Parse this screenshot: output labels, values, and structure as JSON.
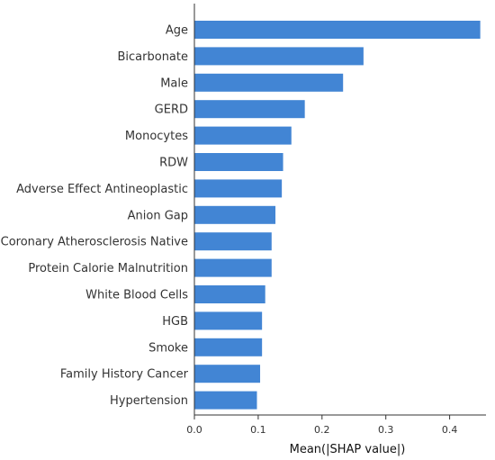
{
  "chart_data": {
    "type": "bar",
    "orientation": "horizontal",
    "categories": [
      "Age",
      "Bicarbonate",
      "Male",
      "GERD",
      "Monocytes",
      "RDW",
      "Adverse Effect Antineoplastic",
      "Anion Gap",
      "Coronary Atherosclerosis Native",
      "Protein Calorie Malnutrition",
      "White Blood Cells",
      "HGB",
      "Smoke",
      "Family History Cancer",
      "Hypertension"
    ],
    "values": [
      0.448,
      0.265,
      0.233,
      0.173,
      0.152,
      0.139,
      0.137,
      0.127,
      0.121,
      0.121,
      0.111,
      0.106,
      0.106,
      0.103,
      0.098
    ],
    "title": "",
    "xlabel": "Mean(|SHAP value|)",
    "ylabel": "",
    "xlim": [
      0,
      0.46
    ],
    "xticks": [
      0.0,
      0.1,
      0.2,
      0.3,
      0.4
    ],
    "xtick_labels": [
      "0.0",
      "0.1",
      "0.2",
      "0.3",
      "0.4"
    ],
    "bar_color": "#4285d4",
    "grid": false,
    "legend": "none"
  }
}
